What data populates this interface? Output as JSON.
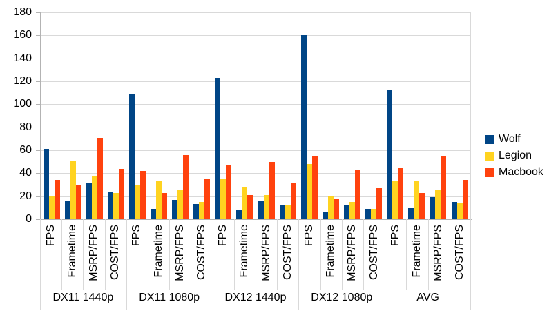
{
  "chart_data": {
    "type": "bar",
    "title": "",
    "ylim": [
      0,
      180
    ],
    "ytick_step": 20,
    "ytick_labels": [
      "0",
      "20",
      "40",
      "60",
      "80",
      "100",
      "120",
      "140",
      "160",
      "180"
    ],
    "grid": true,
    "legend_position": "right",
    "series": [
      {
        "name": "Wolf",
        "color": "#004586"
      },
      {
        "name": "Legion",
        "color": "#FFD320"
      },
      {
        "name": "Macbook",
        "color": "#FF420E"
      }
    ],
    "groups": [
      {
        "label": "DX11 1440p",
        "categories": [
          "FPS",
          "Frametime",
          "MSRP/FPS",
          "COST/FPS"
        ],
        "values": {
          "Wolf": [
            61,
            16,
            31,
            24
          ],
          "Legion": [
            20,
            51,
            38,
            23
          ],
          "Macbook": [
            34,
            30,
            71,
            44
          ]
        }
      },
      {
        "label": "DX11 1080p",
        "categories": [
          "FPS",
          "Frametime",
          "MSRP/FPS",
          "COST/FPS"
        ],
        "values": {
          "Wolf": [
            109,
            9,
            17,
            13
          ],
          "Legion": [
            30,
            33,
            25,
            15
          ],
          "Macbook": [
            42,
            23,
            56,
            35
          ]
        }
      },
      {
        "label": "DX12 1440p",
        "categories": [
          "FPS",
          "Frametime",
          "MSRP/FPS",
          "COST/FPS"
        ],
        "values": {
          "Wolf": [
            123,
            8,
            16,
            12
          ],
          "Legion": [
            35,
            28,
            21,
            12
          ],
          "Macbook": [
            47,
            21,
            50,
            31
          ]
        }
      },
      {
        "label": "DX12 1080p",
        "categories": [
          "FPS",
          "Frametime",
          "MSRP/FPS",
          "COST/FPS"
        ],
        "values": {
          "Wolf": [
            160,
            6,
            12,
            9
          ],
          "Legion": [
            48,
            20,
            15,
            9
          ],
          "Macbook": [
            55,
            18,
            43,
            27
          ]
        }
      },
      {
        "label": "AVG",
        "categories": [
          "FPS",
          "Frametime",
          "MSRP/FPS",
          "COST/FPS"
        ],
        "values": {
          "Wolf": [
            113,
            10,
            19,
            15
          ],
          "Legion": [
            33,
            33,
            25,
            14
          ],
          "Macbook": [
            45,
            23,
            55,
            34
          ]
        }
      }
    ],
    "colors": {
      "background": "#ffffff",
      "gridline": "#d9d9d9",
      "axis": "#b3b3b3",
      "text": "#000000"
    }
  }
}
